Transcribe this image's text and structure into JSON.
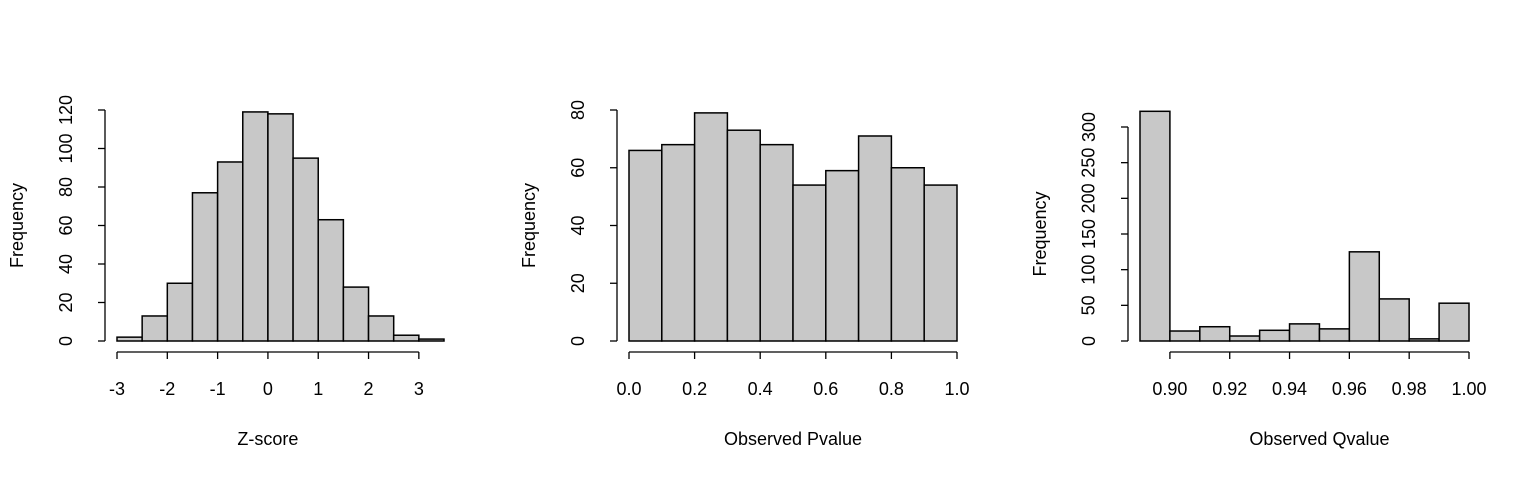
{
  "chart_data": [
    {
      "type": "histogram",
      "x_label": "Z-score",
      "y_label": "Frequency",
      "color": "#c8c8c8",
      "bins": [
        -3,
        -2.5,
        -2,
        -1.5,
        -1,
        -0.5,
        0,
        0.5,
        1,
        1.5,
        2,
        2.5,
        3,
        3.5
      ],
      "values": [
        2,
        13,
        30,
        77,
        93,
        119,
        118,
        95,
        63,
        28,
        13,
        3,
        1
      ],
      "xlim": [
        -3,
        3.5
      ],
      "xticks": [
        -3,
        -2,
        -1,
        0,
        1,
        2,
        3
      ],
      "ylim": [
        0,
        120
      ],
      "yticks": [
        0,
        20,
        40,
        60,
        80,
        100,
        120
      ]
    },
    {
      "type": "histogram",
      "x_label": "Observed Pvalue",
      "y_label": "Frequency",
      "color": "#c8c8c8",
      "bins": [
        0,
        0.1,
        0.2,
        0.3,
        0.4,
        0.5,
        0.6,
        0.7,
        0.8,
        0.9,
        1
      ],
      "values": [
        66,
        68,
        79,
        73,
        68,
        54,
        59,
        71,
        60,
        54
      ],
      "xlim": [
        0,
        1
      ],
      "xticks": [
        {
          "value": 0,
          "label": "0.0"
        },
        0.2,
        0.4,
        0.6,
        0.8,
        {
          "value": 1,
          "label": "1.0"
        }
      ],
      "ylim": [
        0,
        80
      ],
      "yticks": [
        0,
        20,
        40,
        60,
        80
      ]
    },
    {
      "type": "histogram",
      "x_label": "Observed Qvalue",
      "y_label": "Frequency",
      "color": "#c8c8c8",
      "bins": [
        0.89,
        0.9,
        0.91,
        0.92,
        0.93,
        0.94,
        0.95,
        0.96,
        0.97,
        0.98,
        0.99,
        1
      ],
      "values": [
        322,
        14,
        20,
        7,
        15,
        24,
        17,
        125,
        59,
        3,
        53
      ],
      "xlim": [
        0.89,
        1
      ],
      "xticks": [
        {
          "value": 0.9,
          "label": "0.90"
        },
        {
          "value": 0.92,
          "label": "0.92"
        },
        {
          "value": 0.94,
          "label": "0.94"
        },
        {
          "value": 0.96,
          "label": "0.96"
        },
        {
          "value": 0.98,
          "label": "0.98"
        },
        {
          "value": 1,
          "label": "1.00"
        }
      ],
      "ylim": [
        0,
        300
      ],
      "yticks": [
        0,
        50,
        100,
        150,
        200,
        250,
        300
      ]
    }
  ]
}
